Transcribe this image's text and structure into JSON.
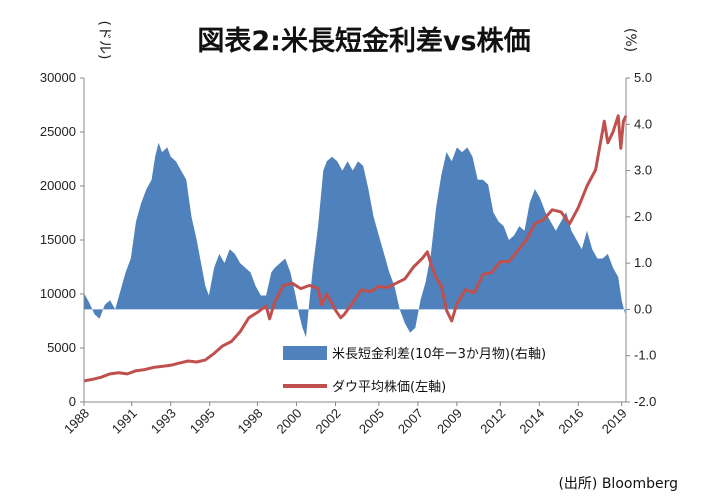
{
  "chart_data": {
    "type": "area+line",
    "title": "図表2:米長短金利差vs株価",
    "left_unit": "(ドル)",
    "right_unit": "(%)",
    "source": "(出所) Bloomberg",
    "x_tick_labels": [
      "1988",
      "1991",
      "1993",
      "1995",
      "1998",
      "2000",
      "2002",
      "2005",
      "2007",
      "2009",
      "2012",
      "2014",
      "2016",
      "2019"
    ],
    "x_tick_years": [
      1988.0,
      1990.75,
      1993.0,
      1995.25,
      1998.0,
      2000.25,
      2002.5,
      2005.0,
      2007.25,
      2009.5,
      2012.0,
      2014.25,
      2016.5,
      2019.0
    ],
    "xlim": [
      1988.0,
      2019.25
    ],
    "y_left": {
      "lim": [
        0,
        30000
      ],
      "ticks": [
        0,
        5000,
        10000,
        15000,
        20000,
        25000,
        30000
      ]
    },
    "y_right": {
      "lim": [
        -2.0,
        5.0
      ],
      "ticks": [
        "-2.0",
        "-1.0",
        "0.0",
        "1.0",
        "2.0",
        "3.0",
        "4.0",
        "5.0"
      ]
    },
    "series": [
      {
        "name": "米長短金利差(10年ー3か月物)(右軸)",
        "type": "area",
        "axis": "right",
        "color": "#4f81bd",
        "x": [
          1988.0,
          1988.3,
          1988.6,
          1988.9,
          1989.2,
          1989.5,
          1989.8,
          1990.1,
          1990.4,
          1990.7,
          1991.0,
          1991.3,
          1991.6,
          1991.9,
          1992.1,
          1992.3,
          1992.5,
          1992.8,
          1993.0,
          1993.3,
          1993.6,
          1993.9,
          1994.2,
          1994.5,
          1994.8,
          1995.0,
          1995.2,
          1995.5,
          1995.8,
          1996.1,
          1996.4,
          1996.7,
          1997.0,
          1997.3,
          1997.6,
          1997.9,
          1998.2,
          1998.5,
          1998.8,
          1999.0,
          1999.3,
          1999.6,
          1999.9,
          2000.2,
          2000.4,
          2000.6,
          2000.8,
          2001.0,
          2001.2,
          2001.5,
          2001.8,
          2002.0,
          2002.3,
          2002.6,
          2002.9,
          2003.2,
          2003.5,
          2003.8,
          2004.1,
          2004.4,
          2004.7,
          2005.0,
          2005.3,
          2005.6,
          2005.9,
          2006.2,
          2006.5,
          2006.8,
          2007.1,
          2007.4,
          2007.7,
          2008.0,
          2008.3,
          2008.6,
          2008.9,
          2009.2,
          2009.5,
          2009.8,
          2010.1,
          2010.4,
          2010.7,
          2011.0,
          2011.3,
          2011.6,
          2011.9,
          2012.2,
          2012.5,
          2012.8,
          2013.1,
          2013.4,
          2013.7,
          2014.0,
          2014.3,
          2014.6,
          2014.9,
          2015.2,
          2015.5,
          2015.8,
          2016.1,
          2016.4,
          2016.7,
          2017.0,
          2017.3,
          2017.6,
          2017.9,
          2018.2,
          2018.5,
          2018.8,
          2019.0,
          2019.2
        ],
        "values": [
          0.35,
          0.15,
          -0.1,
          -0.2,
          0.1,
          0.2,
          0.0,
          0.4,
          0.8,
          1.1,
          1.9,
          2.3,
          2.6,
          2.8,
          3.3,
          3.6,
          3.4,
          3.5,
          3.3,
          3.2,
          3.0,
          2.8,
          2.0,
          1.5,
          0.9,
          0.5,
          0.3,
          0.9,
          1.2,
          1.0,
          1.3,
          1.2,
          1.0,
          0.9,
          0.8,
          0.5,
          0.3,
          0.3,
          0.8,
          0.9,
          1.0,
          1.1,
          0.8,
          0.3,
          -0.1,
          -0.4,
          -0.6,
          0.2,
          0.9,
          1.8,
          3.0,
          3.2,
          3.3,
          3.2,
          3.0,
          3.2,
          3.0,
          3.2,
          3.1,
          2.6,
          2.0,
          1.6,
          1.2,
          0.8,
          0.5,
          0.0,
          -0.3,
          -0.5,
          -0.4,
          0.2,
          0.6,
          1.2,
          2.2,
          2.9,
          3.4,
          3.2,
          3.5,
          3.4,
          3.5,
          3.3,
          2.8,
          2.8,
          2.7,
          2.1,
          1.9,
          1.8,
          1.5,
          1.6,
          1.8,
          1.7,
          2.3,
          2.6,
          2.4,
          2.1,
          1.9,
          1.7,
          1.9,
          2.1,
          1.7,
          1.5,
          1.3,
          1.7,
          1.3,
          1.1,
          1.1,
          1.2,
          0.9,
          0.7,
          0.2,
          -0.1
        ]
      },
      {
        "name": "ダウ平均株価(左軸)",
        "type": "line",
        "axis": "left",
        "color": "#c0504d",
        "x": [
          1988.0,
          1988.5,
          1989.0,
          1989.5,
          1990.0,
          1990.5,
          1991.0,
          1991.5,
          1992.0,
          1992.5,
          1993.0,
          1993.5,
          1994.0,
          1994.5,
          1995.0,
          1995.5,
          1996.0,
          1996.5,
          1997.0,
          1997.5,
          1998.0,
          1998.5,
          1998.7,
          1999.0,
          1999.5,
          2000.0,
          2000.5,
          2001.0,
          2001.5,
          2001.7,
          2002.0,
          2002.5,
          2002.8,
          2003.0,
          2003.5,
          2004.0,
          2004.5,
          2005.0,
          2005.5,
          2006.0,
          2006.5,
          2007.0,
          2007.5,
          2007.8,
          2008.0,
          2008.3,
          2008.6,
          2008.9,
          2009.2,
          2009.5,
          2010.0,
          2010.5,
          2011.0,
          2011.5,
          2012.0,
          2012.5,
          2013.0,
          2013.5,
          2014.0,
          2014.5,
          2015.0,
          2015.5,
          2016.0,
          2016.5,
          2017.0,
          2017.5,
          2018.0,
          2018.2,
          2018.5,
          2018.8,
          2018.95,
          2019.1,
          2019.25
        ],
        "values": [
          1950,
          2100,
          2300,
          2600,
          2700,
          2600,
          2900,
          3000,
          3200,
          3300,
          3400,
          3600,
          3800,
          3700,
          3900,
          4500,
          5200,
          5600,
          6500,
          7800,
          8300,
          8900,
          7700,
          9300,
          10800,
          11000,
          10500,
          10800,
          10500,
          9000,
          10000,
          8500,
          7800,
          8100,
          9200,
          10400,
          10200,
          10700,
          10600,
          11000,
          11400,
          12500,
          13300,
          13900,
          12800,
          11500,
          10800,
          8500,
          7500,
          9100,
          10400,
          10100,
          11800,
          12000,
          13000,
          13000,
          14000,
          15000,
          16500,
          16900,
          17800,
          17600,
          16500,
          18000,
          20000,
          21500,
          26000,
          24000,
          25000,
          26500,
          23500,
          26000,
          26500
        ]
      }
    ]
  }
}
